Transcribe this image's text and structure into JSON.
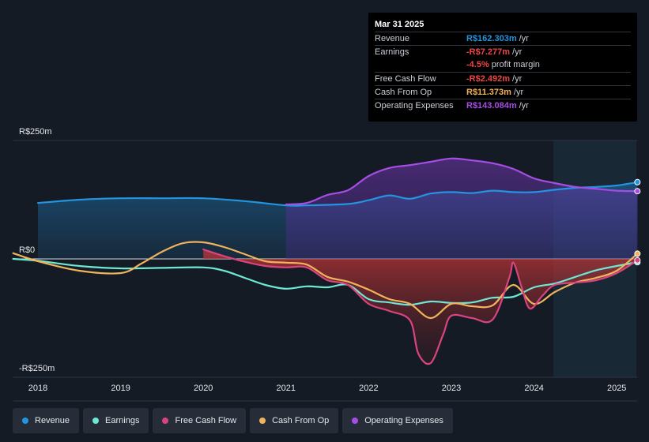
{
  "tooltip": {
    "date": "Mar 31 2025",
    "rows": {
      "revenue": {
        "label": "Revenue",
        "value": "R$162.303m",
        "unit": "/yr",
        "color": "#2394df"
      },
      "earnings": {
        "label": "Earnings",
        "value": "-R$7.277m",
        "unit": "/yr",
        "color": "#ef4444"
      },
      "margin": {
        "value": "-4.5%",
        "unit": "profit margin",
        "color": "#ef4444"
      },
      "fcf": {
        "label": "Free Cash Flow",
        "value": "-R$2.492m",
        "unit": "/yr",
        "color": "#ef4444"
      },
      "cfo": {
        "label": "Cash From Op",
        "value": "R$11.373m",
        "unit": "/yr",
        "color": "#f0b35c"
      },
      "opex": {
        "label": "Operating Expenses",
        "value": "R$143.084m",
        "unit": "/yr",
        "color": "#a64de6"
      }
    }
  },
  "legend": {
    "revenue": "Revenue",
    "earnings": "Earnings",
    "fcf": "Free Cash Flow",
    "cfo": "Cash From Op",
    "opex": "Operating Expenses"
  },
  "colors": {
    "revenue": "#2394df",
    "earnings": "#6ee7d5",
    "fcf": "#d9447f",
    "cfo": "#f0b35c",
    "opex": "#a64de6"
  },
  "chart_data": {
    "type": "line",
    "title": "",
    "xlabel": "",
    "ylabel": "",
    "y_unit": "R$ millions",
    "ylim": [
      -250,
      250
    ],
    "y_tick_labels": [
      "R$250m",
      "R$0",
      "-R$250m"
    ],
    "y_ticks": [
      250,
      0,
      -250
    ],
    "x_ticks": [
      2018,
      2019,
      2020,
      2021,
      2022,
      2023,
      2024,
      2025
    ],
    "x_range": [
      2017.7,
      2025.25
    ],
    "forecast_start": 2024.25,
    "series": [
      {
        "name": "Revenue",
        "key": "revenue",
        "start": 2018.0,
        "x": [
          2018.0,
          2018.5,
          2019.0,
          2019.5,
          2020.0,
          2020.5,
          2021.0,
          2021.25,
          2021.75,
          2022.0,
          2022.25,
          2022.5,
          2022.75,
          2023.0,
          2023.25,
          2023.5,
          2023.75,
          2024.0,
          2024.25,
          2024.5,
          2024.75,
          2025.0,
          2025.25
        ],
        "y": [
          118,
          125,
          128,
          128,
          128,
          122,
          113,
          113,
          116,
          124,
          134,
          127,
          138,
          141,
          139,
          144,
          141,
          141,
          146,
          150,
          152,
          155,
          162
        ]
      },
      {
        "name": "Earnings",
        "key": "earnings",
        "x": [
          2017.7,
          2018.0,
          2018.5,
          2019.0,
          2019.5,
          2020.0,
          2020.25,
          2020.5,
          2020.75,
          2021.0,
          2021.25,
          2021.5,
          2021.75,
          2022.0,
          2022.25,
          2022.5,
          2022.75,
          2023.0,
          2023.25,
          2023.5,
          2023.75,
          2024.0,
          2024.25,
          2024.5,
          2024.75,
          2025.0,
          2025.25
        ],
        "y": [
          0,
          -4,
          -15,
          -20,
          -19,
          -18,
          -25,
          -40,
          -55,
          -63,
          -58,
          -60,
          -55,
          -85,
          -92,
          -97,
          -90,
          -93,
          -92,
          -82,
          -80,
          -60,
          -52,
          -38,
          -24,
          -15,
          -7
        ]
      },
      {
        "name": "Free Cash Flow",
        "key": "fcf",
        "start": 2020.0,
        "x": [
          2020.0,
          2020.25,
          2020.5,
          2020.75,
          2021.0,
          2021.25,
          2021.5,
          2021.75,
          2022.0,
          2022.25,
          2022.5,
          2022.6,
          2022.75,
          2022.9,
          2023.0,
          2023.25,
          2023.5,
          2023.7,
          2023.75,
          2023.85,
          2023.95,
          2024.1,
          2024.25,
          2024.5,
          2024.75,
          2025.0,
          2025.25
        ],
        "y": [
          20,
          6,
          -6,
          -15,
          -18,
          -18,
          -45,
          -55,
          -95,
          -110,
          -130,
          -200,
          -220,
          -160,
          -120,
          -125,
          -128,
          -40,
          -8,
          -60,
          -105,
          -78,
          -55,
          -50,
          -45,
          -30,
          -3
        ]
      },
      {
        "name": "Cash From Op",
        "key": "cfo",
        "x": [
          2017.7,
          2018.0,
          2018.5,
          2019.0,
          2019.25,
          2019.5,
          2019.75,
          2020.0,
          2020.25,
          2020.5,
          2020.75,
          2021.0,
          2021.25,
          2021.5,
          2021.75,
          2022.0,
          2022.25,
          2022.5,
          2022.75,
          2023.0,
          2023.25,
          2023.5,
          2023.75,
          2024.0,
          2024.25,
          2024.5,
          2024.75,
          2025.0,
          2025.25
        ],
        "y": [
          12,
          -5,
          -25,
          -30,
          -10,
          15,
          33,
          35,
          25,
          10,
          -5,
          -8,
          -12,
          -38,
          -48,
          -65,
          -85,
          -95,
          -125,
          -95,
          -100,
          -98,
          -55,
          -95,
          -70,
          -50,
          -40,
          -25,
          11
        ]
      },
      {
        "name": "Operating Expenses",
        "key": "opex",
        "start": 2021.0,
        "x": [
          2021.0,
          2021.25,
          2021.5,
          2021.75,
          2022.0,
          2022.25,
          2022.5,
          2022.75,
          2023.0,
          2023.25,
          2023.5,
          2023.75,
          2024.0,
          2024.25,
          2024.5,
          2024.75,
          2025.0,
          2025.25
        ],
        "y": [
          115,
          118,
          135,
          145,
          175,
          192,
          198,
          205,
          212,
          208,
          202,
          190,
          170,
          160,
          152,
          148,
          144,
          143
        ]
      }
    ]
  }
}
